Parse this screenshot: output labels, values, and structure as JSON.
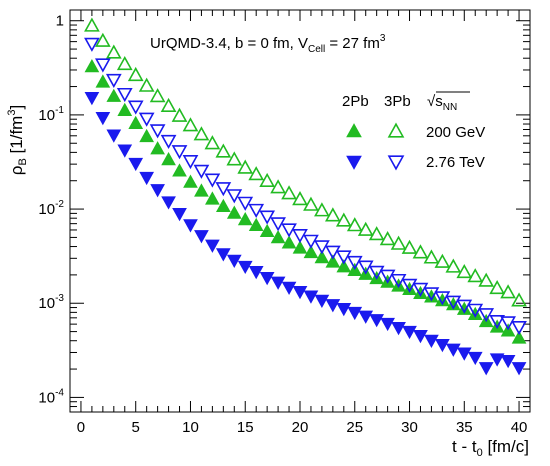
{
  "chart_data": {
    "type": "scatter",
    "title": "UrQMD-3.4, b = 0 fm, V",
    "title_sub": "Cell",
    "title_tail": " = 27 fm",
    "title_sup": "3",
    "xlabel": "t - t",
    "xlabel_sub": "0",
    "xlabel_unit": " [fm/c]",
    "ylabel": "ρ",
    "ylabel_sub": "B",
    "ylabel_unit": " [1/fm",
    "ylabel_sup": "3",
    "ylabel_close": "]",
    "x_ticks": [
      "0",
      "5",
      "10",
      "15",
      "20",
      "25",
      "30",
      "35",
      "40"
    ],
    "y_ticks": [
      {
        "base": "10",
        "exp": "-4"
      },
      {
        "base": "10",
        "exp": "-3"
      },
      {
        "base": "10",
        "exp": "-2"
      },
      {
        "base": "10",
        "exp": "-1"
      },
      {
        "base": "1",
        "exp": ""
      }
    ],
    "xlim": [
      -1,
      41
    ],
    "ylim": [
      7e-05,
      1.3
    ],
    "y_scale": "log",
    "grid": false,
    "legend": {
      "placement": "top-right",
      "col_2pb": "2Pb",
      "col_3pb": "3Pb",
      "energy_header": "√s",
      "energy_header_sub": "NN",
      "row_200": "200 GeV",
      "row_276": "2.76 TeV"
    },
    "colors": {
      "green": "#22bb22",
      "blue": "#1a1aee"
    },
    "series": [
      {
        "label": "2Pb 200 GeV",
        "color": "green",
        "marker": "triangle-up-filled",
        "x0": 1,
        "dx": 1,
        "y": [
          0.32,
          0.22,
          0.155,
          0.11,
          0.08,
          0.058,
          0.043,
          0.033,
          0.025,
          0.019,
          0.0153,
          0.0126,
          0.0105,
          0.0089,
          0.0076,
          0.0066,
          0.0057,
          0.0049,
          0.0043,
          0.0038,
          0.0034,
          0.003,
          0.0027,
          0.0024,
          0.0022,
          0.002,
          0.0018,
          0.00165,
          0.0015,
          0.00138,
          0.00125,
          0.00115,
          0.00105,
          0.00095,
          0.00085,
          0.00075,
          0.00063,
          0.00055,
          0.0005,
          0.00042
        ]
      },
      {
        "label": "3Pb 200 GeV",
        "color": "green",
        "marker": "triangle-up-open",
        "x0": 1,
        "dx": 1,
        "y": [
          0.87,
          0.6,
          0.45,
          0.34,
          0.26,
          0.2,
          0.155,
          0.122,
          0.096,
          0.076,
          0.061,
          0.049,
          0.04,
          0.033,
          0.027,
          0.023,
          0.0195,
          0.0167,
          0.0144,
          0.0125,
          0.0109,
          0.0095,
          0.0084,
          0.0074,
          0.0066,
          0.0059,
          0.0053,
          0.0047,
          0.0042,
          0.0038,
          0.0034,
          0.003,
          0.0027,
          0.0024,
          0.0021,
          0.0019,
          0.0017,
          0.00142,
          0.00128,
          0.00105
        ]
      },
      {
        "label": "2Pb 2.76 TeV",
        "color": "blue",
        "marker": "triangle-down-filled",
        "x0": 1,
        "dx": 1,
        "y": [
          0.155,
          0.095,
          0.062,
          0.043,
          0.031,
          0.022,
          0.0163,
          0.0121,
          0.0091,
          0.0069,
          0.0053,
          0.0042,
          0.0034,
          0.0029,
          0.0025,
          0.0022,
          0.0019,
          0.0017,
          0.0015,
          0.00135,
          0.00121,
          0.00109,
          0.00098,
          0.00089,
          0.00081,
          0.00074,
          0.00068,
          0.00062,
          0.00056,
          0.00051,
          0.00046,
          0.00041,
          0.00037,
          0.00033,
          0.0003,
          0.00027,
          0.00021,
          0.00026,
          0.00025,
          0.00021
        ]
      },
      {
        "label": "3Pb 2.76 TeV",
        "color": "blue",
        "marker": "triangle-down-open",
        "x0": 1,
        "dx": 1,
        "y": [
          0.58,
          0.35,
          0.24,
          0.17,
          0.125,
          0.093,
          0.07,
          0.054,
          0.042,
          0.033,
          0.026,
          0.021,
          0.017,
          0.0143,
          0.0119,
          0.01,
          0.0085,
          0.0072,
          0.0062,
          0.0054,
          0.0047,
          0.0041,
          0.0036,
          0.0032,
          0.0028,
          0.0025,
          0.0022,
          0.002,
          0.0018,
          0.0016,
          0.00145,
          0.0013,
          0.00118,
          0.00106,
          0.00096,
          0.00087,
          0.00078,
          0.00066,
          0.00064,
          0.00057
        ]
      }
    ]
  }
}
